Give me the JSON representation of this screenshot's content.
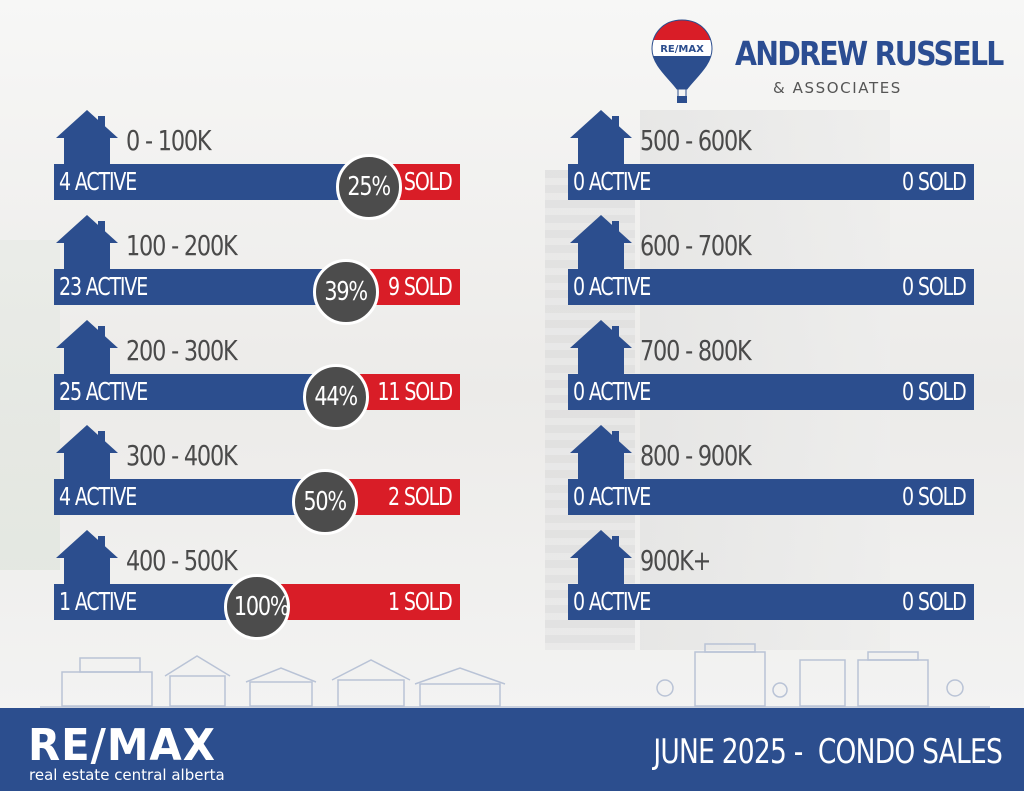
{
  "header": {
    "balloon_text": "RE/MAX",
    "brand_name": "ANDREW RUSSELL",
    "brand_sub": "& ASSOCIATES"
  },
  "footer": {
    "logo": "RE/MAX",
    "tagline": "real estate central alberta",
    "title": "JUNE 2025 -  CONDO SALES"
  },
  "colors": {
    "active": "#2c4e8e",
    "sold": "#d91d27",
    "percent_badge": "#4c4c4c",
    "footer": "#2c4e8e"
  },
  "chart_data": {
    "type": "bar",
    "title": "JUNE 2025 -  CONDO SALES",
    "rows": [
      {
        "range": "0 - 100K",
        "active": 4,
        "sold": 1,
        "active_label": "4 ACTIVE",
        "sold_label": "1 SOLD",
        "percent_label": "25%"
      },
      {
        "range": "100 - 200K",
        "active": 23,
        "sold": 9,
        "active_label": "23 ACTIVE",
        "sold_label": "9 SOLD",
        "percent_label": "39%"
      },
      {
        "range": "200 - 300K",
        "active": 25,
        "sold": 11,
        "active_label": "25 ACTIVE",
        "sold_label": "11 SOLD",
        "percent_label": "44%"
      },
      {
        "range": "300 - 400K",
        "active": 4,
        "sold": 2,
        "active_label": "4 ACTIVE",
        "sold_label": "2 SOLD",
        "percent_label": "50%"
      },
      {
        "range": "400 - 500K",
        "active": 1,
        "sold": 1,
        "active_label": "1 ACTIVE",
        "sold_label": "1 SOLD",
        "percent_label": "100%"
      },
      {
        "range": "500 - 600K",
        "active": 0,
        "sold": 0,
        "active_label": "0 ACTIVE",
        "sold_label": "0 SOLD",
        "percent_label": ""
      },
      {
        "range": "600 - 700K",
        "active": 0,
        "sold": 0,
        "active_label": "0 ACTIVE",
        "sold_label": "0 SOLD",
        "percent_label": ""
      },
      {
        "range": "700 - 800K",
        "active": 0,
        "sold": 0,
        "active_label": "0 ACTIVE",
        "sold_label": "0 SOLD",
        "percent_label": ""
      },
      {
        "range": "800 - 900K",
        "active": 0,
        "sold": 0,
        "active_label": "0 ACTIVE",
        "sold_label": "0 SOLD",
        "percent_label": ""
      },
      {
        "range": "900K+",
        "active": 0,
        "sold": 0,
        "active_label": "0 ACTIVE",
        "sold_label": "0 SOLD",
        "percent_label": ""
      }
    ]
  }
}
